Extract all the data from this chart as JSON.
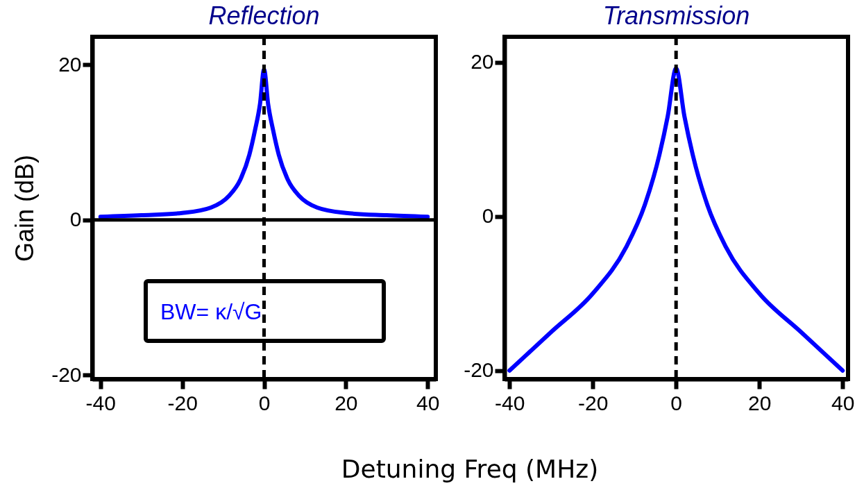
{
  "chart_data": [
    {
      "type": "line",
      "title": "Reflection",
      "ylabel": "Gain (dB)",
      "xlabel": "Detuning Freq (MHz)",
      "x": [
        -40,
        -30,
        -20,
        -13,
        -8.6,
        -5.8,
        -3.6,
        -2.2,
        -1,
        0,
        1,
        2.2,
        3.6,
        5.8,
        8.6,
        13,
        20,
        30,
        40
      ],
      "series": [
        {
          "color": "#0000ff",
          "values": [
            0.4,
            0.6,
            0.9,
            1.6,
            3.1,
            5.2,
            8.4,
            11.6,
            14.9,
            19.4,
            14.9,
            11.6,
            8.4,
            5.2,
            3.1,
            1.6,
            0.9,
            0.6,
            0.4
          ]
        }
      ],
      "xlim": [
        -42,
        42
      ],
      "ylim": [
        -20.5,
        23.6
      ],
      "xticks": [
        -40,
        -20,
        0,
        20,
        40
      ],
      "yticks": [
        -20,
        0,
        20
      ],
      "ref_lines": [
        {
          "axis": "x",
          "value": 0,
          "line_style": "dashed",
          "color": "#000000"
        },
        {
          "axis": "y",
          "value": 0,
          "line_style": "solid",
          "color": "#000000"
        }
      ],
      "annotations": [
        "BW= κ/√G"
      ]
    },
    {
      "type": "line",
      "title": "Transmission",
      "x": [
        -40,
        -30,
        -20,
        -12,
        -7.5,
        -4,
        -2,
        0,
        2,
        4,
        7.5,
        12,
        20,
        30,
        40
      ],
      "series": [
        {
          "color": "#0000ff",
          "values": [
            -20,
            -15,
            -10,
            -4,
            1.5,
            8,
            13,
            19.2,
            13,
            8,
            1.5,
            -4,
            -10,
            -15,
            -20
          ]
        }
      ],
      "xlim": [
        -41.2,
        41.3
      ],
      "ylim": [
        -21.1,
        23.3
      ],
      "xticks": [
        -40,
        -20,
        0,
        20,
        40
      ],
      "yticks": [
        -20,
        0,
        20
      ],
      "ref_lines": [
        {
          "axis": "x",
          "value": 0,
          "line_style": "dashed",
          "color": "#000000"
        }
      ]
    }
  ]
}
